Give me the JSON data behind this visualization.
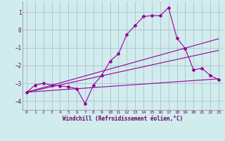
{
  "xlabel": "Windchill (Refroidissement éolien,°C)",
  "background_color": "#d0ecec",
  "grid_color": "#aab8cc",
  "line_color": "#990099",
  "xlim": [
    -0.5,
    23.5
  ],
  "ylim": [
    -4.5,
    1.6
  ],
  "yticks": [
    1,
    0,
    -1,
    -2,
    -3,
    -4
  ],
  "xticks": [
    0,
    1,
    2,
    3,
    4,
    5,
    6,
    7,
    8,
    9,
    10,
    11,
    12,
    13,
    14,
    15,
    16,
    17,
    18,
    19,
    20,
    21,
    22,
    23
  ],
  "line1_x": [
    0,
    1,
    2,
    3,
    4,
    5,
    6,
    7,
    8,
    9,
    10,
    11,
    12,
    13,
    14,
    15,
    16,
    17,
    18,
    19,
    20,
    21,
    22,
    23
  ],
  "line1_y": [
    -3.5,
    -3.1,
    -3.0,
    -3.1,
    -3.15,
    -3.2,
    -3.3,
    -4.15,
    -3.1,
    -2.55,
    -1.75,
    -1.35,
    -0.25,
    0.25,
    0.75,
    0.8,
    0.8,
    1.25,
    -0.45,
    -1.05,
    -2.25,
    -2.15,
    -2.55,
    -2.8
  ],
  "line2_x": [
    0,
    23
  ],
  "line2_y": [
    -3.5,
    -0.5
  ],
  "line3_x": [
    0,
    23
  ],
  "line3_y": [
    -3.5,
    -1.15
  ],
  "line4_x": [
    0,
    23
  ],
  "line4_y": [
    -3.5,
    -2.75
  ]
}
